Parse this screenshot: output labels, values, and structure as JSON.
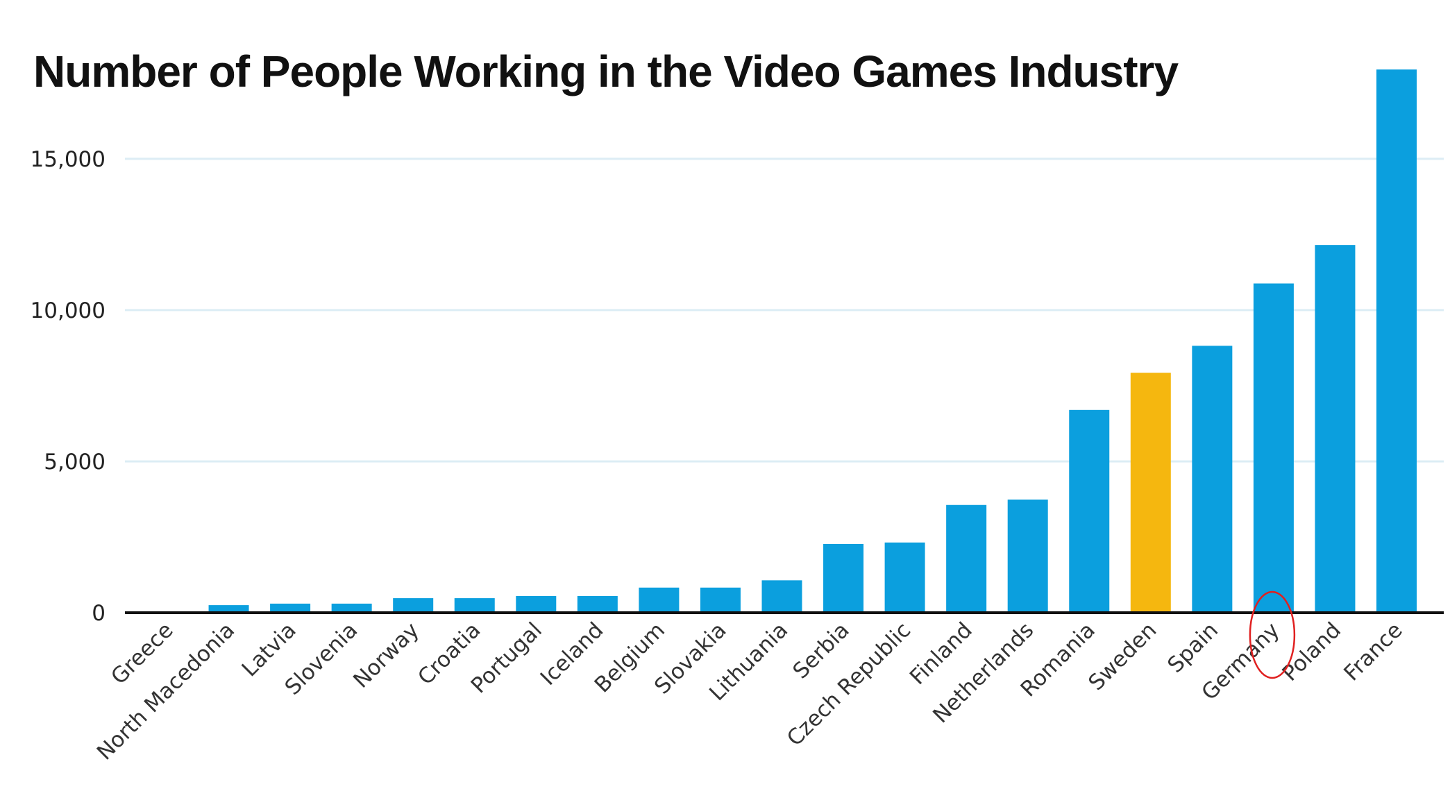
{
  "chart_data": {
    "type": "bar",
    "title": "Number of People Working in the Video Games Industry",
    "xlabel": "",
    "ylabel": "",
    "ylim": [
      0,
      18000
    ],
    "yticks": [
      0,
      5000,
      10000,
      15000
    ],
    "ytick_labels": [
      "0",
      "5,000",
      "10,000",
      "15,000"
    ],
    "grid": "horizontal",
    "categories": [
      "Greece",
      "North Macedonia",
      "Latvia",
      "Slovenia",
      "Norway",
      "Croatia",
      "Portugal",
      "Iceland",
      "Belgium",
      "Slovakia",
      "Lithuania",
      "Serbia",
      "Czech Republic",
      "Finland",
      "Netherlands",
      "Romania",
      "Sweden",
      "Spain",
      "Germany",
      "Poland",
      "France"
    ],
    "values": [
      20,
      250,
      300,
      300,
      480,
      480,
      550,
      550,
      830,
      830,
      1070,
      2270,
      2320,
      3560,
      3740,
      6700,
      7930,
      8820,
      10880,
      12150,
      17950
    ],
    "highlight_category": "Sweden",
    "colors": {
      "bar": "#0b9fde",
      "highlight": "#f5b70f",
      "grid": "#dcedf5",
      "axis": "#111111",
      "annotation": "#e02020"
    },
    "annotation": {
      "shape": "ellipse",
      "target": "Germany"
    }
  }
}
